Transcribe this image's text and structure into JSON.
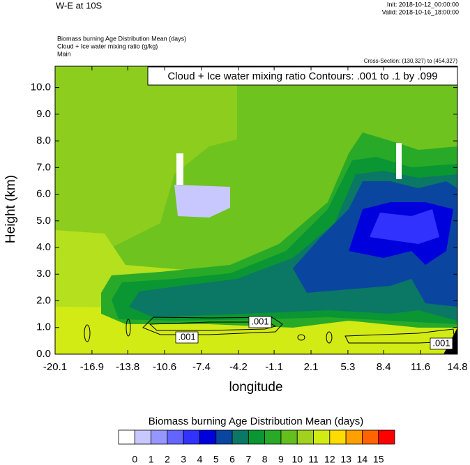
{
  "chart_data": {
    "type": "contour",
    "title": "W-E at 10S",
    "init": "Init: 2018-10-12_00:00:00",
    "valid": "Valid: 2018-10-16_18:00:00",
    "subtitles": [
      "Biomass burning Age Distribution Mean   (days)",
      "Cloud + Ice water mixing ratio   (g/kg)",
      "Main"
    ],
    "cross_section": "Cross-Section: (130,327) to (454,327)",
    "contour_info": "Cloud + Ice water mixing ratio Contours: .001 to .1 by .099",
    "contour_labels": [
      ".001",
      ".001",
      ".001"
    ],
    "x_label": "longitude",
    "y_label": "Height (km)",
    "xlim": [
      -20.1,
      14.8
    ],
    "xticks": [
      -20.1,
      -16.9,
      -13.8,
      -10.6,
      -7.4,
      -4.2,
      -1.1,
      2.1,
      5.3,
      8.4,
      11.6,
      14.8
    ],
    "ylim": [
      0,
      10.8
    ],
    "yticks": [
      {
        "value": 0,
        "label": "0.0"
      },
      {
        "value": 1,
        "label": "1.0"
      },
      {
        "value": 2,
        "label": "2.0"
      },
      {
        "value": 3,
        "label": "3.0"
      },
      {
        "value": 4,
        "label": "4.0"
      },
      {
        "value": 5,
        "label": "5.0"
      },
      {
        "value": 6,
        "label": "6.0"
      },
      {
        "value": 7,
        "label": "7.0"
      },
      {
        "value": 8,
        "label": "8.0"
      },
      {
        "value": 9,
        "label": "9.0"
      },
      {
        "value": 10,
        "label": "10.0"
      }
    ],
    "colorbar_title": "Biomass burning Age Distribution Mean  (days)",
    "levels": [
      0,
      1,
      2,
      3,
      4,
      5,
      6,
      7,
      8,
      9,
      10,
      11,
      12,
      13,
      14,
      15
    ],
    "colors": [
      "#ffffff",
      "#c8c8ff",
      "#9696ff",
      "#6464ff",
      "#3232ff",
      "#0000dc",
      "#0a46a0",
      "#0a7864",
      "#0a9632",
      "#28aa28",
      "#64be1e",
      "#a0d21e",
      "#d2eb14",
      "#ffdc00",
      "#ffa000",
      "#ff6400",
      "#ff0000"
    ]
  }
}
